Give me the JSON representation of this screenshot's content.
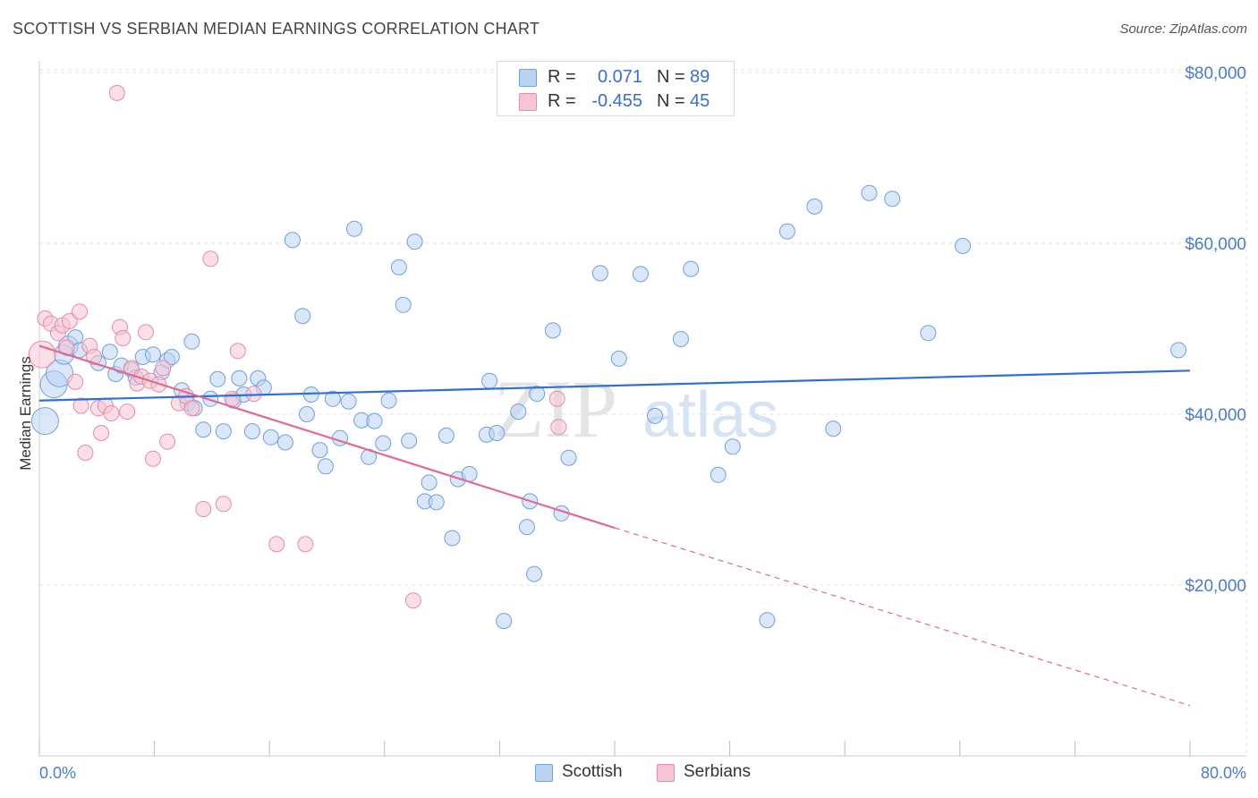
{
  "title": "SCOTTISH VS SERBIAN MEDIAN EARNINGS CORRELATION CHART",
  "source": "Source: ZipAtlas.com",
  "watermark": {
    "zip": "ZIP",
    "atlas": "atlas"
  },
  "legend_stats": [
    {
      "r_label": "R =",
      "r_value": "0.071",
      "n_label": "N =",
      "n_value": "89",
      "color": "#6fa0e0",
      "fill": "#b9d3f3"
    },
    {
      "r_label": "R =",
      "r_value": "-0.455",
      "n_label": "N =",
      "n_value": "45",
      "color": "#e88aa8",
      "fill": "#f8c4d4"
    }
  ],
  "legend_series": [
    {
      "label": "Scottish",
      "color": "#6fa0e0",
      "fill": "#b9d3f3"
    },
    {
      "label": "Serbians",
      "color": "#e88aa8",
      "fill": "#f8c4d4"
    }
  ],
  "chart_data": {
    "type": "scatter",
    "title": "SCOTTISH VS SERBIAN MEDIAN EARNINGS CORRELATION CHART",
    "ylabel": "Median Earnings",
    "xlabel": "",
    "xlim": [
      0,
      80
    ],
    "ylim": [
      0,
      84000
    ],
    "x_tick_labels": [
      "0.0%",
      "80.0%"
    ],
    "y_ticks": [
      20000,
      40000,
      60000,
      80000
    ],
    "y_tick_labels": [
      "$20,000",
      "$40,000",
      "$60,000",
      "$80,000"
    ],
    "grid": true,
    "legend_position": "top-center",
    "series": [
      {
        "name": "Scottish",
        "color": "#6fa0e0",
        "fill": "#b9d3f3",
        "trend": {
          "x": [
            0,
            80
          ],
          "y": [
            41600,
            45100
          ],
          "dashed_to": null
        },
        "points": [
          [
            0.4,
            39200,
            3
          ],
          [
            1.0,
            43500,
            3
          ],
          [
            1.4,
            44800,
            3
          ],
          [
            1.7,
            47000,
            2
          ],
          [
            2.0,
            48000,
            2
          ],
          [
            2.5,
            49000,
            1
          ],
          [
            2.8,
            47500,
            1
          ],
          [
            4.1,
            46000,
            1
          ],
          [
            4.9,
            47300,
            1
          ],
          [
            5.3,
            44700,
            1
          ],
          [
            5.7,
            45700,
            1
          ],
          [
            6.4,
            45200,
            1
          ],
          [
            6.7,
            44300,
            1
          ],
          [
            7.2,
            46700,
            1
          ],
          [
            7.9,
            47000,
            1
          ],
          [
            8.5,
            44900,
            1
          ],
          [
            8.9,
            46300,
            1
          ],
          [
            9.2,
            46700,
            1
          ],
          [
            9.9,
            42800,
            1
          ],
          [
            10.3,
            41300,
            1
          ],
          [
            10.6,
            48500,
            1
          ],
          [
            10.8,
            40700,
            1
          ],
          [
            11.4,
            38200,
            1
          ],
          [
            11.9,
            41800,
            1
          ],
          [
            12.4,
            44100,
            1
          ],
          [
            12.8,
            38000,
            1
          ],
          [
            13.5,
            41600,
            1
          ],
          [
            13.9,
            44200,
            1
          ],
          [
            14.2,
            42300,
            1
          ],
          [
            14.8,
            38000,
            1
          ],
          [
            15.2,
            44200,
            1
          ],
          [
            15.6,
            43100,
            1
          ],
          [
            16.1,
            37300,
            1
          ],
          [
            17.1,
            36700,
            1
          ],
          [
            17.6,
            60400,
            1
          ],
          [
            18.3,
            51500,
            1
          ],
          [
            18.6,
            40000,
            1
          ],
          [
            18.9,
            42300,
            1
          ],
          [
            19.5,
            35800,
            1
          ],
          [
            19.9,
            33900,
            1
          ],
          [
            20.4,
            41800,
            1
          ],
          [
            20.9,
            37200,
            1
          ],
          [
            21.5,
            41500,
            1
          ],
          [
            21.9,
            61700,
            1
          ],
          [
            22.4,
            39300,
            1
          ],
          [
            22.9,
            35000,
            1
          ],
          [
            23.3,
            39200,
            1
          ],
          [
            23.9,
            36600,
            1
          ],
          [
            24.3,
            41600,
            1
          ],
          [
            25.0,
            57200,
            1
          ],
          [
            25.3,
            52800,
            1
          ],
          [
            25.7,
            36900,
            1
          ],
          [
            26.1,
            60200,
            1
          ],
          [
            26.8,
            29800,
            1
          ],
          [
            27.1,
            32000,
            1
          ],
          [
            27.6,
            29700,
            1
          ],
          [
            28.3,
            37500,
            1
          ],
          [
            28.7,
            25500,
            1
          ],
          [
            29.1,
            32400,
            1
          ],
          [
            29.9,
            33000,
            1
          ],
          [
            31.1,
            37600,
            1
          ],
          [
            31.3,
            43900,
            1
          ],
          [
            31.8,
            37800,
            1
          ],
          [
            32.3,
            15800,
            1
          ],
          [
            33.3,
            40300,
            1
          ],
          [
            33.9,
            26800,
            1
          ],
          [
            34.1,
            29800,
            1
          ],
          [
            34.4,
            21300,
            1
          ],
          [
            34.6,
            42400,
            1
          ],
          [
            35.7,
            49800,
            1
          ],
          [
            36.3,
            28400,
            1
          ],
          [
            36.8,
            34900,
            1
          ],
          [
            39.0,
            56500,
            1
          ],
          [
            40.3,
            46500,
            1
          ],
          [
            41.8,
            56400,
            1
          ],
          [
            42.8,
            39800,
            1
          ],
          [
            44.6,
            48800,
            1
          ],
          [
            45.3,
            57000,
            1
          ],
          [
            47.2,
            32900,
            1
          ],
          [
            48.2,
            36200,
            1
          ],
          [
            50.6,
            15900,
            1
          ],
          [
            52.0,
            61400,
            1
          ],
          [
            53.9,
            64300,
            1
          ],
          [
            55.2,
            38300,
            1
          ],
          [
            57.7,
            65900,
            1
          ],
          [
            59.3,
            65200,
            1
          ],
          [
            61.8,
            49500,
            1
          ],
          [
            64.2,
            59700,
            1
          ],
          [
            79.2,
            47500,
            1
          ]
        ]
      },
      {
        "name": "Serbians",
        "color": "#e88aa8",
        "fill": "#f8c4d4",
        "trend": {
          "x": [
            0,
            40
          ],
          "y": [
            48000,
            26700
          ],
          "dashed_to": [
            80,
            5900
          ]
        },
        "points": [
          [
            0.2,
            47000,
            3
          ],
          [
            0.4,
            51200,
            1
          ],
          [
            0.8,
            50600,
            1
          ],
          [
            1.3,
            49500,
            1
          ],
          [
            1.6,
            50400,
            1
          ],
          [
            1.9,
            47800,
            1
          ],
          [
            2.1,
            50900,
            1
          ],
          [
            2.5,
            43800,
            1
          ],
          [
            2.8,
            52000,
            1
          ],
          [
            2.9,
            41000,
            1
          ],
          [
            3.2,
            35500,
            1
          ],
          [
            3.5,
            48000,
            1
          ],
          [
            3.8,
            46700,
            1
          ],
          [
            4.1,
            40700,
            1
          ],
          [
            4.3,
            37800,
            1
          ],
          [
            4.6,
            41000,
            1
          ],
          [
            5.0,
            40100,
            1
          ],
          [
            5.4,
            77600,
            1
          ],
          [
            5.6,
            50200,
            1
          ],
          [
            5.8,
            48900,
            1
          ],
          [
            6.1,
            40300,
            1
          ],
          [
            6.4,
            45400,
            1
          ],
          [
            6.8,
            43600,
            1
          ],
          [
            7.1,
            44400,
            1
          ],
          [
            7.4,
            49600,
            1
          ],
          [
            7.7,
            43900,
            1
          ],
          [
            7.9,
            34800,
            1
          ],
          [
            8.3,
            43500,
            1
          ],
          [
            8.6,
            45400,
            1
          ],
          [
            8.9,
            36800,
            1
          ],
          [
            9.7,
            41300,
            1
          ],
          [
            10.2,
            42100,
            1
          ],
          [
            10.6,
            40700,
            1
          ],
          [
            11.4,
            28900,
            1
          ],
          [
            11.9,
            58200,
            1
          ],
          [
            12.8,
            29500,
            1
          ],
          [
            13.4,
            41800,
            1
          ],
          [
            13.8,
            47400,
            1
          ],
          [
            14.9,
            42400,
            1
          ],
          [
            16.5,
            24800,
            1
          ],
          [
            18.5,
            24800,
            1
          ],
          [
            26.0,
            18200,
            1
          ],
          [
            36.0,
            41800,
            1
          ],
          [
            36.1,
            38500,
            1
          ]
        ]
      }
    ]
  }
}
